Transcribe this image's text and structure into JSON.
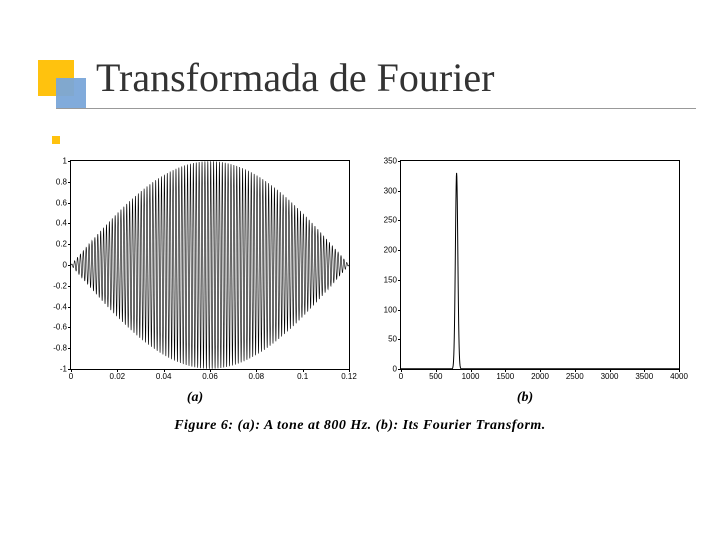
{
  "title": "Transformada de Fourier",
  "colors": {
    "accent_square_outer": "#ffc20e",
    "accent_square_inner": "#7aa7d9",
    "text": "#333333",
    "line": "#999999",
    "plot_stroke": "#000000",
    "background": "#ffffff"
  },
  "chart_a": {
    "type": "line",
    "xlim": [
      0,
      0.12
    ],
    "ylim": [
      -1,
      1
    ],
    "xticks": [
      0,
      0.02,
      0.04,
      0.06,
      0.08,
      0.1,
      0.12
    ],
    "yticks": [
      -1,
      -0.8,
      -0.6,
      -0.4,
      -0.2,
      0,
      0.2,
      0.4,
      0.6,
      0.8,
      1
    ],
    "frequency_hz": 800,
    "envelope": "sin(pi*t/0.12)",
    "stroke_width": 0.6,
    "label": "(a)"
  },
  "chart_b": {
    "type": "line",
    "xlim": [
      0,
      4000
    ],
    "ylim": [
      0,
      350
    ],
    "xticks": [
      0,
      500,
      1000,
      1500,
      2000,
      2500,
      3000,
      3500,
      4000
    ],
    "yticks": [
      0,
      50,
      100,
      150,
      200,
      250,
      300,
      350
    ],
    "peak_x": 800,
    "peak_y": 330,
    "peak_half_width": 35,
    "stroke_width": 1,
    "label": "(b)"
  },
  "caption": "Figure 6: (a): A tone at 800 Hz. (b): Its Fourier Transform."
}
